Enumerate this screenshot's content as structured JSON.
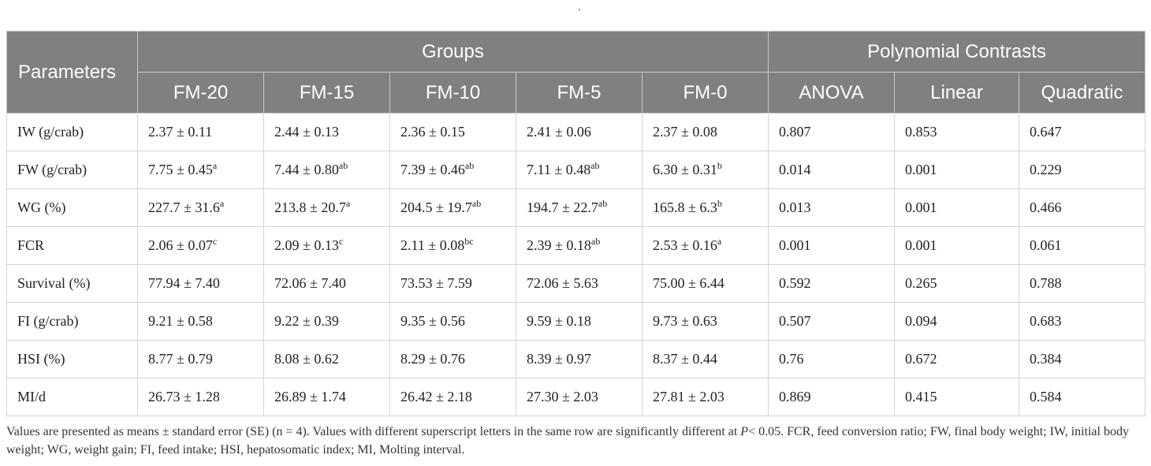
{
  "top_mark": ".",
  "table": {
    "header": {
      "parameters": "Parameters",
      "groups": "Groups",
      "contrasts": "Polynomial Contrasts",
      "subcolumns": [
        "FM-20",
        "FM-15",
        "FM-10",
        "FM-5",
        "FM-0",
        "ANOVA",
        "Linear",
        "Quadratic"
      ]
    },
    "rows": [
      {
        "label": "IW (g/crab)",
        "cells": [
          {
            "v": "2.37 ± 0.11",
            "s": ""
          },
          {
            "v": "2.44 ± 0.13",
            "s": ""
          },
          {
            "v": "2.36 ± 0.15",
            "s": ""
          },
          {
            "v": "2.41 ± 0.06",
            "s": ""
          },
          {
            "v": "2.37 ± 0.08",
            "s": ""
          },
          {
            "v": "0.807",
            "s": ""
          },
          {
            "v": "0.853",
            "s": ""
          },
          {
            "v": "0.647",
            "s": ""
          }
        ]
      },
      {
        "label": "FW (g/crab)",
        "cells": [
          {
            "v": "7.75 ± 0.45",
            "s": "a"
          },
          {
            "v": "7.44 ± 0.80",
            "s": "ab"
          },
          {
            "v": "7.39 ± 0.46",
            "s": "ab"
          },
          {
            "v": "7.11 ± 0.48",
            "s": "ab"
          },
          {
            "v": "6.30 ± 0.31",
            "s": "b"
          },
          {
            "v": "0.014",
            "s": ""
          },
          {
            "v": "0.001",
            "s": ""
          },
          {
            "v": "0.229",
            "s": ""
          }
        ]
      },
      {
        "label": "WG (%)",
        "cells": [
          {
            "v": "227.7 ± 31.6",
            "s": "a"
          },
          {
            "v": "213.8 ± 20.7",
            "s": "a"
          },
          {
            "v": "204.5 ± 19.7",
            "s": "ab"
          },
          {
            "v": "194.7 ± 22.7",
            "s": "ab"
          },
          {
            "v": "165.8 ± 6.3",
            "s": "b"
          },
          {
            "v": "0.013",
            "s": ""
          },
          {
            "v": "0.001",
            "s": ""
          },
          {
            "v": "0.466",
            "s": ""
          }
        ]
      },
      {
        "label": "FCR",
        "cells": [
          {
            "v": "2.06 ± 0.07",
            "s": "c"
          },
          {
            "v": "2.09 ± 0.13",
            "s": "c"
          },
          {
            "v": "2.11 ± 0.08",
            "s": "bc"
          },
          {
            "v": "2.39 ± 0.18",
            "s": "ab"
          },
          {
            "v": "2.53 ± 0.16",
            "s": "a"
          },
          {
            "v": "0.001",
            "s": ""
          },
          {
            "v": "0.001",
            "s": ""
          },
          {
            "v": "0.061",
            "s": ""
          }
        ]
      },
      {
        "label": "Survival (%)",
        "cells": [
          {
            "v": "77.94 ± 7.40",
            "s": ""
          },
          {
            "v": "72.06 ± 7.40",
            "s": ""
          },
          {
            "v": "73.53 ± 7.59",
            "s": ""
          },
          {
            "v": "72.06 ± 5.63",
            "s": ""
          },
          {
            "v": "75.00 ± 6.44",
            "s": ""
          },
          {
            "v": "0.592",
            "s": ""
          },
          {
            "v": "0.265",
            "s": ""
          },
          {
            "v": "0.788",
            "s": ""
          }
        ]
      },
      {
        "label": "FI (g/crab)",
        "cells": [
          {
            "v": "9.21 ± 0.58",
            "s": ""
          },
          {
            "v": "9.22 ± 0.39",
            "s": ""
          },
          {
            "v": "9.35 ± 0.56",
            "s": ""
          },
          {
            "v": "9.59 ± 0.18",
            "s": ""
          },
          {
            "v": "9.73 ± 0.63",
            "s": ""
          },
          {
            "v": "0.507",
            "s": ""
          },
          {
            "v": "0.094",
            "s": ""
          },
          {
            "v": "0.683",
            "s": ""
          }
        ]
      },
      {
        "label": "HSI (%)",
        "cells": [
          {
            "v": "8.77 ± 0.79",
            "s": ""
          },
          {
            "v": "8.08 ± 0.62",
            "s": ""
          },
          {
            "v": "8.29 ± 0.76",
            "s": ""
          },
          {
            "v": "8.39 ± 0.97",
            "s": ""
          },
          {
            "v": "8.37 ± 0.44",
            "s": ""
          },
          {
            "v": "0.76",
            "s": ""
          },
          {
            "v": "0.672",
            "s": ""
          },
          {
            "v": "0.384",
            "s": ""
          }
        ]
      },
      {
        "label": "MI/d",
        "cells": [
          {
            "v": "26.73 ± 1.28",
            "s": ""
          },
          {
            "v": "26.89 ± 1.74",
            "s": ""
          },
          {
            "v": "26.42 ± 2.18",
            "s": ""
          },
          {
            "v": "27.30 ± 2.03",
            "s": ""
          },
          {
            "v": "27.81 ± 2.03",
            "s": ""
          },
          {
            "v": "0.869",
            "s": ""
          },
          {
            "v": "0.415",
            "s": ""
          },
          {
            "v": "0.584",
            "s": ""
          }
        ]
      }
    ]
  },
  "footnote": {
    "part1": "Values are presented as means ± standard error (SE) (n = 4). Values with different superscript letters in the same row are significantly different at ",
    "p_symbol": "P",
    "part2": "< 0.05. FCR, feed conversion ratio; FW, final body weight; IW, initial body weight; WG, weight gain; FI, feed intake; HSI, hepatosomatic index; MI, Molting interval."
  }
}
